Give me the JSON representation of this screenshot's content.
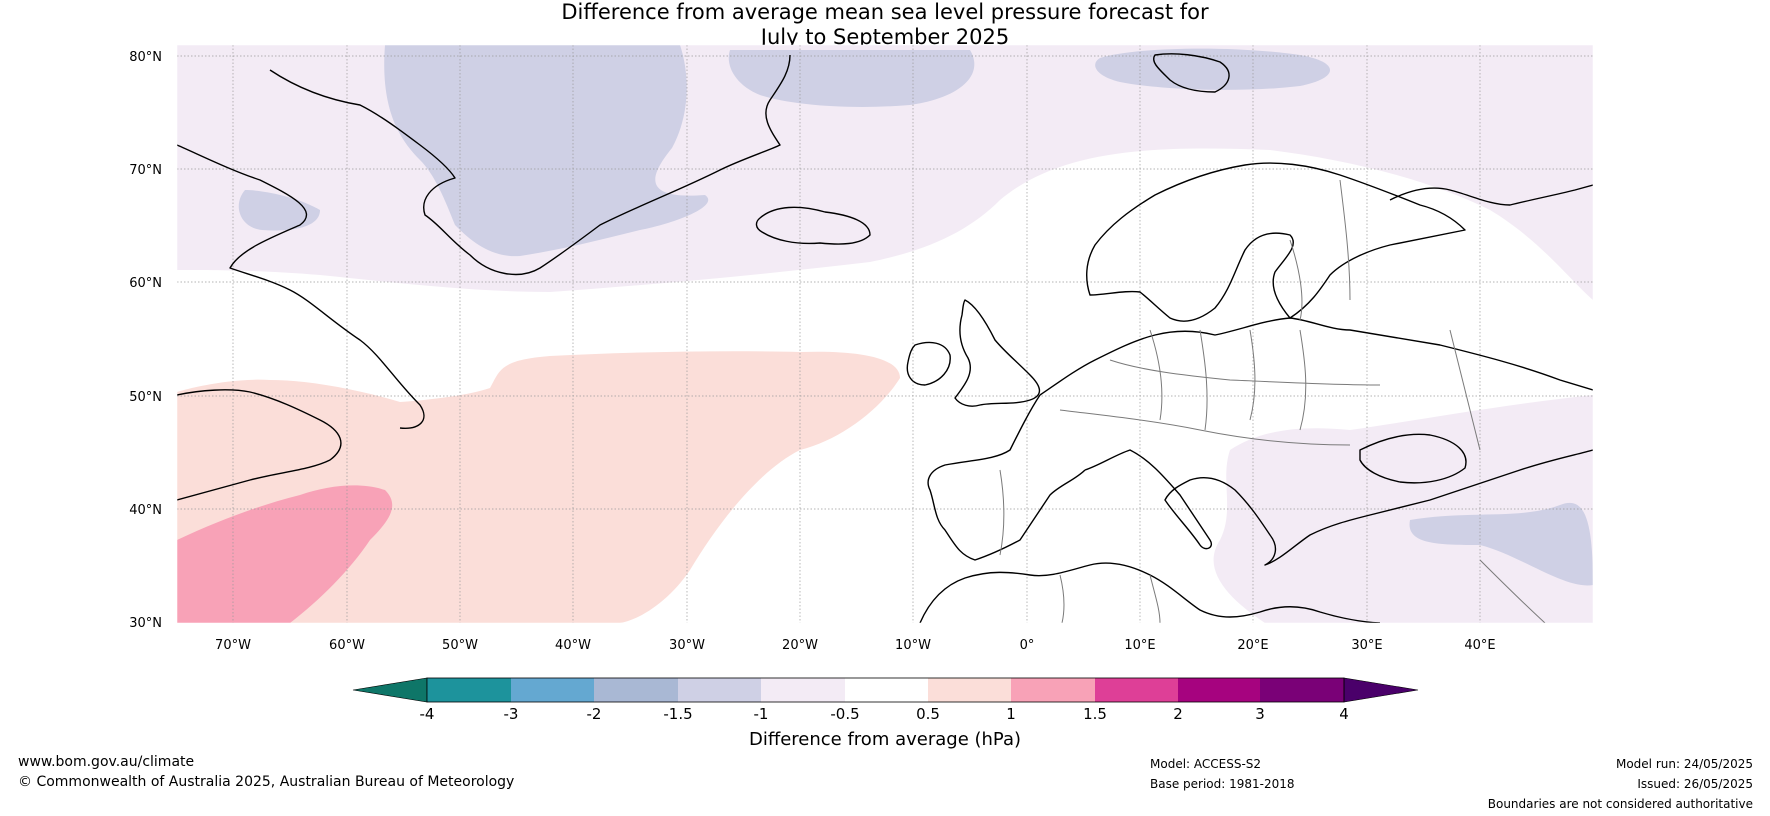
{
  "title": {
    "line1": "Difference from average mean sea level pressure forecast for",
    "line2": "July to September 2025"
  },
  "map": {
    "lat_labels": [
      "80°N",
      "70°N",
      "60°N",
      "50°N",
      "40°N",
      "30°N"
    ],
    "lon_labels": [
      "70°W",
      "60°W",
      "50°W",
      "40°W",
      "30°W",
      "20°W",
      "10°W",
      "0°",
      "10°E",
      "20°E",
      "30°E",
      "40°E"
    ],
    "colors": {
      "neg_1_5_to_1": "#cfd0e5",
      "neg_1_to_0_5": "#f3ebf5",
      "pos_0_5_to_1": "#fbded9",
      "pos_1_to_1_5": "#f8a2b7",
      "coast": "#000000",
      "borders": "#7a7a7a"
    }
  },
  "colorbar": {
    "label": "Difference from average (hPa)",
    "ticks": [
      "-4",
      "-3",
      "-2",
      "-1.5",
      "-1",
      "-0.5",
      "0.5",
      "1",
      "1.5",
      "2",
      "3",
      "4"
    ],
    "colors": [
      "#0e7668",
      "#1d939c",
      "#64a8d1",
      "#a9b8d4",
      "#cfd0e5",
      "#f3ebf5",
      "#ffffff",
      "#fbded9",
      "#f8a2b7",
      "#de3f97",
      "#a6037f",
      "#7a0177",
      "#4a006a"
    ]
  },
  "footer": {
    "url": "www.bom.gov.au/climate",
    "copyright": "© Commonwealth of Australia 2025, Australian Bureau of Meteorology",
    "model": "Model: ACCESS-S2",
    "base_period": "Base period: 1981-2018",
    "model_run": "Model run: 24/05/2025",
    "issued": "Issued: 26/05/2025",
    "disclaimer": "Boundaries are not considered authoritative"
  }
}
